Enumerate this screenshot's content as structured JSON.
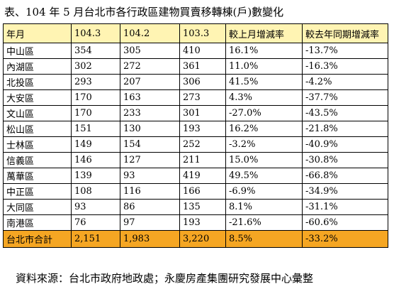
{
  "title": "表、104 年 5 月台北市各行政區建物買賣移轉棟(戶)數變化",
  "table": {
    "headers": [
      "年月",
      "104.3",
      "104.2",
      "103.3",
      "較上月增減率",
      "較去年同期增減率"
    ],
    "rows": [
      [
        "中山區",
        "354",
        "305",
        "410",
        "16.1%",
        "-13.7%"
      ],
      [
        "內湖區",
        "302",
        "272",
        "361",
        "11.0%",
        "-16.3%"
      ],
      [
        "北投區",
        "293",
        "207",
        "306",
        "41.5%",
        "-4.2%"
      ],
      [
        "大安區",
        "170",
        "163",
        "273",
        "4.3%",
        "-37.7%"
      ],
      [
        "文山區",
        "170",
        "233",
        "301",
        "-27.0%",
        "-43.5%"
      ],
      [
        "松山區",
        "151",
        "130",
        "193",
        "16.2%",
        "-21.8%"
      ],
      [
        "士林區",
        "149",
        "154",
        "252",
        "-3.2%",
        "-40.9%"
      ],
      [
        "信義區",
        "146",
        "127",
        "211",
        "15.0%",
        "-30.8%"
      ],
      [
        "萬華區",
        "139",
        "93",
        "419",
        "49.5%",
        "-66.8%"
      ],
      [
        "中正區",
        "108",
        "116",
        "166",
        "-6.9%",
        "-34.9%"
      ],
      [
        "大同區",
        "93",
        "86",
        "135",
        "8.1%",
        "-31.1%"
      ],
      [
        "南港區",
        "76",
        "97",
        "193",
        "-21.6%",
        "-60.6%"
      ]
    ],
    "total": [
      "台北市合計",
      "2,151",
      "1,983",
      "3,220",
      "8.5%",
      "-33.2%"
    ]
  },
  "source": "資料來源：台北市政府地政處；永慶房產集團研究發展中心彙整",
  "colors": {
    "header_bg": "#fff4b3",
    "total_bg": "#f5a623"
  }
}
